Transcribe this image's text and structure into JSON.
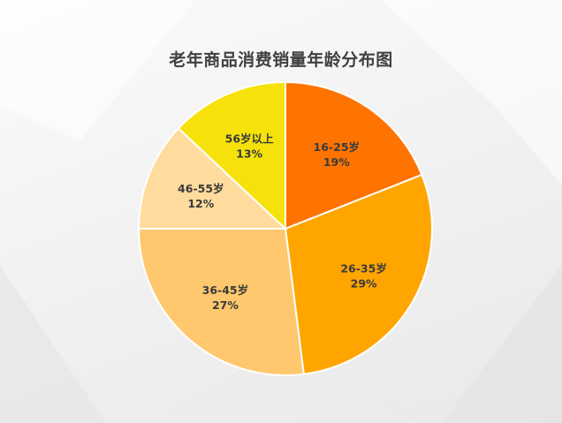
{
  "chart_data": {
    "type": "pie",
    "title": "老年商品消费销量年龄分布图",
    "slices": [
      {
        "label": "16-25岁",
        "value": 19,
        "display": "19%",
        "color": "#ff7300"
      },
      {
        "label": "26-35岁",
        "value": 29,
        "display": "29%",
        "color": "#ffa500"
      },
      {
        "label": "36-45岁",
        "value": 27,
        "display": "27%",
        "color": "#ffc86e"
      },
      {
        "label": "46-55岁",
        "value": 12,
        "display": "12%",
        "color": "#ffdc9e"
      },
      {
        "label": "56岁以上",
        "value": 13,
        "display": "13%",
        "color": "#f6e20a"
      }
    ],
    "legend": "none",
    "start_angle_deg": 0,
    "direction": "clockwise"
  }
}
